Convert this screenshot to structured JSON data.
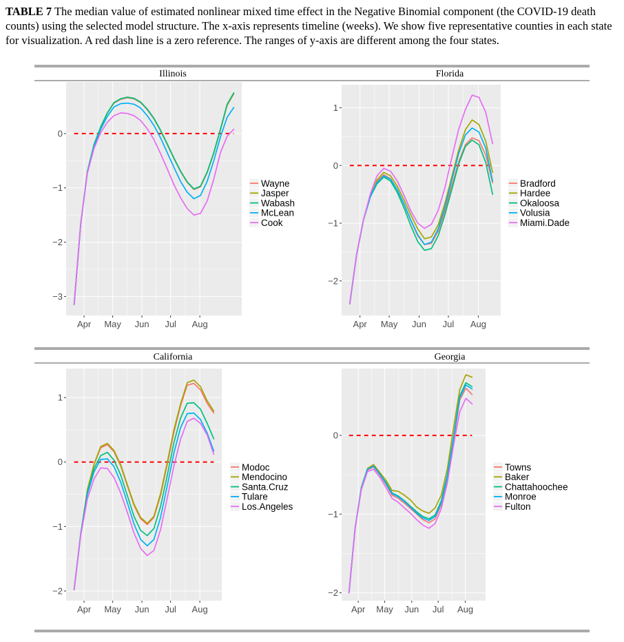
{
  "caption": {
    "label": "TABLE 7",
    "text": "The median value of estimated nonlinear mixed time effect in the Negative Binomial component (the COVID-19 death counts) using the selected model structure. The x-axis represents timeline (weeks). We show five representative counties in each state for visualization. A red dash line is a zero reference. The ranges of y-axis are different among the four states."
  },
  "colors": {
    "s1": "#F8766D",
    "s2": "#A3A500",
    "s3": "#00BF7D",
    "s4": "#00B0F6",
    "s5": "#E76BF3",
    "zero_line": "#FF0000",
    "panel_bg": "#EBEBEB",
    "grid": "#FFFFFF"
  },
  "chart_data": [
    {
      "type": "line",
      "title": "Illinois",
      "x_ticks": [
        "Apr",
        "May",
        "Jun",
        "Jul",
        "Aug"
      ],
      "x_tick_weeks": [
        1.5,
        5.8,
        10.2,
        14.5,
        18.9
      ],
      "xlim": [
        -1.2,
        25.2
      ],
      "y_ticks": [
        0,
        -1,
        -2,
        -3
      ],
      "y_tick_labels": [
        "0",
        "−1",
        "−2",
        "−3"
      ],
      "ylim": [
        -3.35,
        0.95
      ],
      "series": [
        {
          "name": "Wayne",
          "values": [
            -3.15,
            -1.65,
            -0.7,
            -0.2,
            0.12,
            0.38,
            0.56,
            0.63,
            0.66,
            0.64,
            0.57,
            0.44,
            0.27,
            0.05,
            -0.2,
            -0.46,
            -0.7,
            -0.9,
            -1.03,
            -0.98,
            -0.72,
            -0.36,
            0.07,
            0.52,
            0.73
          ]
        },
        {
          "name": "Jasper",
          "values": [
            -3.15,
            -1.65,
            -0.7,
            -0.2,
            0.12,
            0.38,
            0.57,
            0.64,
            0.67,
            0.65,
            0.58,
            0.45,
            0.28,
            0.06,
            -0.19,
            -0.45,
            -0.69,
            -0.89,
            -1.02,
            -0.97,
            -0.71,
            -0.35,
            0.08,
            0.53,
            0.74
          ]
        },
        {
          "name": "Wabash",
          "values": [
            -3.15,
            -1.65,
            -0.7,
            -0.2,
            0.12,
            0.38,
            0.57,
            0.64,
            0.67,
            0.65,
            0.58,
            0.45,
            0.28,
            0.06,
            -0.19,
            -0.45,
            -0.69,
            -0.89,
            -1.02,
            -0.97,
            -0.71,
            -0.35,
            0.08,
            0.54,
            0.75
          ]
        },
        {
          "name": "McLean",
          "values": [
            -3.15,
            -1.65,
            -0.71,
            -0.23,
            0.08,
            0.32,
            0.49,
            0.55,
            0.56,
            0.54,
            0.47,
            0.33,
            0.15,
            -0.08,
            -0.35,
            -0.62,
            -0.88,
            -1.08,
            -1.2,
            -1.14,
            -0.88,
            -0.5,
            -0.06,
            0.3,
            0.48
          ]
        },
        {
          "name": "Cook",
          "values": [
            -3.15,
            -1.65,
            -0.73,
            -0.27,
            0.02,
            0.21,
            0.33,
            0.38,
            0.37,
            0.33,
            0.24,
            0.09,
            -0.11,
            -0.37,
            -0.65,
            -0.94,
            -1.18,
            -1.38,
            -1.5,
            -1.47,
            -1.24,
            -0.84,
            -0.35,
            -0.05,
            0.08
          ]
        }
      ]
    },
    {
      "type": "line",
      "title": "Florida",
      "x_ticks": [
        "Apr",
        "May",
        "Jun",
        "Jul",
        "Aug"
      ],
      "x_tick_weeks": [
        1.5,
        5.8,
        10.2,
        14.5,
        18.9
      ],
      "xlim": [
        -1.2,
        22.2
      ],
      "y_ticks": [
        1,
        0,
        -1,
        -2
      ],
      "y_tick_labels": [
        "1",
        "0",
        "−1",
        "−2"
      ],
      "ylim": [
        -2.6,
        1.4
      ],
      "series": [
        {
          "name": "Bradford",
          "values": [
            -2.4,
            -1.55,
            -0.95,
            -0.55,
            -0.28,
            -0.16,
            -0.23,
            -0.42,
            -0.68,
            -0.96,
            -1.22,
            -1.37,
            -1.35,
            -1.14,
            -0.78,
            -0.36,
            0.06,
            0.36,
            0.48,
            0.43,
            0.18,
            -0.3
          ]
        },
        {
          "name": "Hardee",
          "values": [
            -2.4,
            -1.55,
            -0.95,
            -0.55,
            -0.25,
            -0.12,
            -0.18,
            -0.36,
            -0.6,
            -0.86,
            -1.1,
            -1.27,
            -1.24,
            -1.03,
            -0.65,
            -0.2,
            0.26,
            0.62,
            0.79,
            0.71,
            0.42,
            -0.12
          ]
        },
        {
          "name": "Okaloosa",
          "values": [
            -2.4,
            -1.55,
            -0.95,
            -0.55,
            -0.32,
            -0.2,
            -0.27,
            -0.47,
            -0.74,
            -1.05,
            -1.32,
            -1.47,
            -1.44,
            -1.22,
            -0.85,
            -0.42,
            0.02,
            0.33,
            0.44,
            0.36,
            0.05,
            -0.5
          ]
        },
        {
          "name": "Volusia",
          "values": [
            -2.4,
            -1.55,
            -0.95,
            -0.55,
            -0.3,
            -0.18,
            -0.24,
            -0.42,
            -0.67,
            -0.95,
            -1.2,
            -1.37,
            -1.33,
            -1.1,
            -0.72,
            -0.26,
            0.2,
            0.53,
            0.65,
            0.58,
            0.3,
            -0.27
          ]
        },
        {
          "name": "Miami.Dade",
          "values": [
            -2.4,
            -1.55,
            -0.95,
            -0.5,
            -0.18,
            -0.05,
            -0.1,
            -0.27,
            -0.52,
            -0.79,
            -1.0,
            -1.09,
            -1.02,
            -0.78,
            -0.38,
            0.13,
            0.62,
            0.97,
            1.22,
            1.18,
            0.92,
            0.38
          ]
        }
      ]
    },
    {
      "type": "line",
      "title": "California",
      "x_ticks": [
        "Apr",
        "May",
        "Jun",
        "Jul",
        "Aug"
      ],
      "x_tick_weeks": [
        1.5,
        5.8,
        10.2,
        14.5,
        18.9
      ],
      "xlim": [
        -1.2,
        22.2
      ],
      "y_ticks": [
        1,
        0,
        -1,
        -2
      ],
      "y_tick_labels": [
        "1",
        "0",
        "−1",
        "−2"
      ],
      "ylim": [
        -2.15,
        1.45
      ],
      "series": [
        {
          "name": "Modoc",
          "values": [
            -1.98,
            -1.12,
            -0.43,
            -0.04,
            0.22,
            0.27,
            0.16,
            -0.06,
            -0.37,
            -0.67,
            -0.88,
            -0.97,
            -0.86,
            -0.52,
            -0.04,
            0.46,
            0.87,
            1.19,
            1.22,
            1.12,
            0.91,
            0.76
          ]
        },
        {
          "name": "Mendocino",
          "values": [
            -1.98,
            -1.12,
            -0.43,
            -0.03,
            0.24,
            0.29,
            0.18,
            -0.04,
            -0.35,
            -0.65,
            -0.86,
            -0.95,
            -0.84,
            -0.49,
            -0.01,
            0.5,
            0.9,
            1.23,
            1.27,
            1.17,
            0.95,
            0.79
          ]
        },
        {
          "name": "Santa.Cruz",
          "values": [
            -1.98,
            -1.12,
            -0.47,
            -0.1,
            0.1,
            0.15,
            0.03,
            -0.2,
            -0.52,
            -0.84,
            -1.06,
            -1.14,
            -1.03,
            -0.69,
            -0.21,
            0.3,
            0.68,
            0.91,
            0.92,
            0.82,
            0.6,
            0.36
          ]
        },
        {
          "name": "Tulare",
          "values": [
            -1.98,
            -1.12,
            -0.5,
            -0.15,
            0.04,
            0.05,
            -0.07,
            -0.31,
            -0.63,
            -0.96,
            -1.2,
            -1.3,
            -1.2,
            -0.86,
            -0.37,
            0.14,
            0.53,
            0.75,
            0.76,
            0.66,
            0.45,
            0.17
          ]
        },
        {
          "name": "Los.Angeles",
          "values": [
            -1.98,
            -1.14,
            -0.57,
            -0.26,
            -0.09,
            -0.1,
            -0.24,
            -0.48,
            -0.78,
            -1.1,
            -1.34,
            -1.45,
            -1.37,
            -1.05,
            -0.56,
            -0.06,
            0.35,
            0.63,
            0.68,
            0.6,
            0.42,
            0.12
          ]
        }
      ]
    },
    {
      "type": "line",
      "title": "Georgia",
      "x_ticks": [
        "Apr",
        "May",
        "Jun",
        "Jul",
        "Aug"
      ],
      "x_tick_weeks": [
        1.5,
        5.8,
        10.2,
        14.5,
        18.9
      ],
      "xlim": [
        -1.2,
        22.2
      ],
      "y_ticks": [
        0,
        -1,
        -2
      ],
      "y_tick_labels": [
        "0",
        "−1",
        "−2"
      ],
      "ylim": [
        -2.1,
        0.85
      ],
      "series": [
        {
          "name": "Towns",
          "values": [
            -2.0,
            -1.18,
            -0.68,
            -0.44,
            -0.4,
            -0.5,
            -0.62,
            -0.76,
            -0.8,
            -0.86,
            -0.93,
            -1.0,
            -1.07,
            -1.11,
            -1.06,
            -0.88,
            -0.55,
            -0.06,
            0.45,
            0.6,
            0.52
          ]
        },
        {
          "name": "Baker",
          "values": [
            -2.0,
            -1.18,
            -0.66,
            -0.42,
            -0.37,
            -0.47,
            -0.57,
            -0.7,
            -0.71,
            -0.76,
            -0.82,
            -0.91,
            -0.96,
            -0.99,
            -0.92,
            -0.76,
            -0.42,
            0.1,
            0.58,
            0.77,
            0.74
          ]
        },
        {
          "name": "Chattahoochee",
          "values": [
            -2.0,
            -1.18,
            -0.67,
            -0.43,
            -0.39,
            -0.49,
            -0.6,
            -0.73,
            -0.77,
            -0.83,
            -0.9,
            -0.97,
            -1.03,
            -1.06,
            -1.01,
            -0.83,
            -0.5,
            -0.02,
            0.5,
            0.67,
            0.62
          ]
        },
        {
          "name": "Monroe",
          "values": [
            -2.0,
            -1.18,
            -0.67,
            -0.43,
            -0.39,
            -0.49,
            -0.61,
            -0.74,
            -0.78,
            -0.84,
            -0.91,
            -0.99,
            -1.05,
            -1.08,
            -1.03,
            -0.86,
            -0.52,
            -0.03,
            0.48,
            0.64,
            0.59
          ]
        },
        {
          "name": "Fulton",
          "values": [
            -2.0,
            -1.18,
            -0.69,
            -0.46,
            -0.43,
            -0.53,
            -0.66,
            -0.8,
            -0.85,
            -0.92,
            -0.99,
            -1.07,
            -1.14,
            -1.18,
            -1.12,
            -0.93,
            -0.6,
            -0.12,
            0.3,
            0.47,
            0.4
          ]
        }
      ]
    }
  ]
}
